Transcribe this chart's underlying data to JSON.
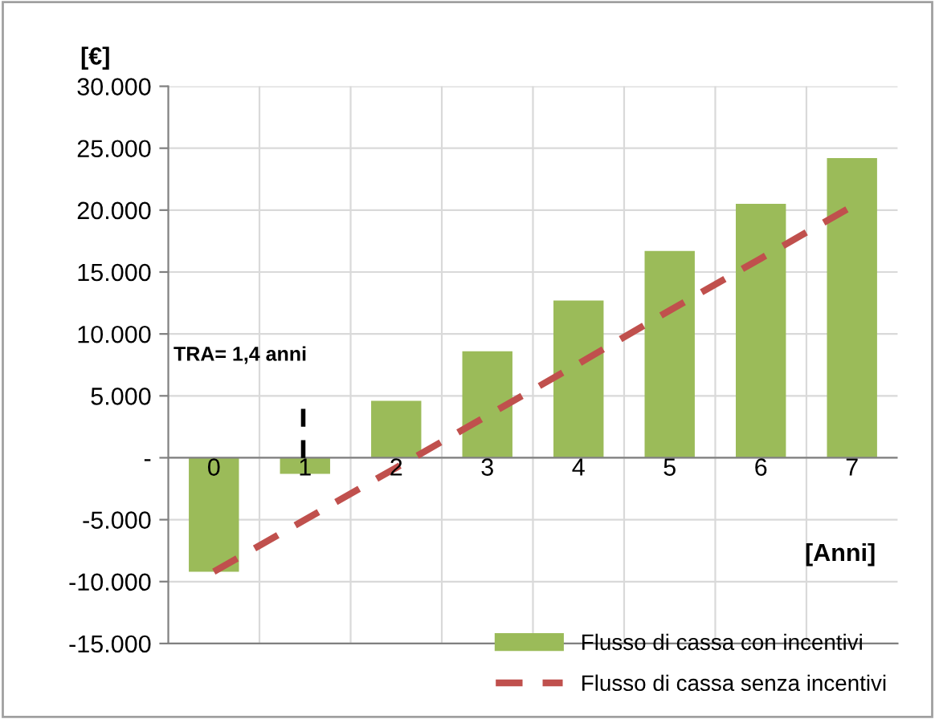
{
  "chart_data": {
    "type": "bar",
    "ylabel": "[€]",
    "xlabel": "[Anni]",
    "categories": [
      "0",
      "1",
      "2",
      "3",
      "4",
      "5",
      "6",
      "7"
    ],
    "series": [
      {
        "name": "Flusso di cassa con incentivi",
        "color": "#9bbb59",
        "values": [
          -9200,
          -1300,
          4600,
          8600,
          12700,
          16700,
          20500,
          24200
        ]
      },
      {
        "name": "Flusso di cassa senza incentivi",
        "type": "line",
        "color": "#c0504d",
        "line_style": "dashed",
        "values": [
          -9200,
          -5000,
          -800,
          3400,
          7600,
          11900,
          16100,
          20300
        ]
      }
    ],
    "ylim": [
      -15000,
      30000
    ],
    "yticks": [
      {
        "value": -15000,
        "label": "-15.000"
      },
      {
        "value": -10000,
        "label": "-10.000"
      },
      {
        "value": -5000,
        "label": "-5.000"
      },
      {
        "value": 0,
        "label": "-"
      },
      {
        "value": 5000,
        "label": "5.000"
      },
      {
        "value": 10000,
        "label": "10.000"
      },
      {
        "value": 15000,
        "label": "15.000"
      },
      {
        "value": 20000,
        "label": "20.000"
      },
      {
        "value": 25000,
        "label": "25.000"
      },
      {
        "value": 30000,
        "label": "30.000"
      }
    ],
    "annotations": [
      "TRA= 1,4 anni"
    ],
    "grid": true,
    "legend": "bottom right"
  }
}
